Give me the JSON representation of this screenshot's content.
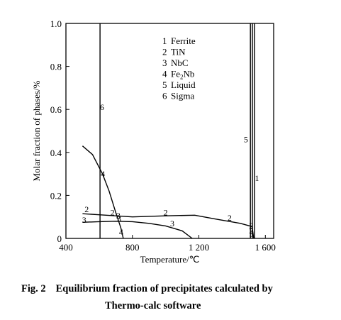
{
  "chart_data": {
    "type": "line",
    "xlabel": "Temperature/℃",
    "ylabel": "Molar fraction of phases/%",
    "xlim": [
      400,
      1650
    ],
    "ylim": [
      0,
      1.0
    ],
    "x_ticks": [
      {
        "value": 400,
        "label": "400"
      },
      {
        "value": 800,
        "label": "800"
      },
      {
        "value": 1200,
        "label": "1 200"
      },
      {
        "value": 1600,
        "label": "1 600"
      }
    ],
    "y_ticks": [
      {
        "value": 0,
        "label": "0"
      },
      {
        "value": 0.2,
        "label": "0.2"
      },
      {
        "value": 0.4,
        "label": "0.4"
      },
      {
        "value": 0.6,
        "label": "0.6"
      },
      {
        "value": 0.8,
        "label": "0.8"
      },
      {
        "value": 1.0,
        "label": "1.0"
      }
    ],
    "legend": {
      "placement": "top-center",
      "entries": [
        {
          "num": "1",
          "name": "Ferrite"
        },
        {
          "num": "2",
          "name": "TiN"
        },
        {
          "num": "3",
          "name": "NbC"
        },
        {
          "num": "4",
          "name": "Fe",
          "sub": "2",
          "suffix": "Nb"
        },
        {
          "num": "5",
          "name": "Liquid"
        },
        {
          "num": "6",
          "name": "Sigma"
        }
      ]
    },
    "series": [
      {
        "name": "Ferrite",
        "label": "1",
        "points": [
          [
            1535,
            1.0
          ],
          [
            1535,
            0.0
          ]
        ]
      },
      {
        "name": "TiN",
        "label": "2",
        "points": [
          [
            500,
            0.115
          ],
          [
            600,
            0.11
          ],
          [
            700,
            0.105
          ],
          [
            800,
            0.1
          ],
          [
            1000,
            0.105
          ],
          [
            1175,
            0.108
          ],
          [
            1300,
            0.09
          ],
          [
            1450,
            0.07
          ],
          [
            1520,
            0.055
          ],
          [
            1530,
            0.0
          ]
        ]
      },
      {
        "name": "NbC",
        "label": "3",
        "points": [
          [
            500,
            0.075
          ],
          [
            600,
            0.078
          ],
          [
            700,
            0.08
          ],
          [
            800,
            0.078
          ],
          [
            900,
            0.07
          ],
          [
            1000,
            0.058
          ],
          [
            1100,
            0.035
          ],
          [
            1160,
            0.0
          ]
        ]
      },
      {
        "name": "Fe₂Nb",
        "label": "4",
        "points": [
          [
            500,
            0.43
          ],
          [
            560,
            0.39
          ],
          [
            620,
            0.3
          ],
          [
            660,
            0.22
          ],
          [
            700,
            0.12
          ],
          [
            730,
            0.05
          ],
          [
            745,
            0.0
          ]
        ]
      },
      {
        "name": "Liquid",
        "label": "5",
        "points": [
          [
            1510,
            1.0
          ],
          [
            1510,
            0.0
          ]
        ]
      },
      {
        "name": "Sigma",
        "label": "6",
        "points": [
          [
            605,
            1.0
          ],
          [
            605,
            0.0
          ]
        ]
      },
      {
        "name": "",
        "label": "",
        "points": [
          [
            1522,
            1.0
          ],
          [
            1522,
            0.0
          ]
        ]
      }
    ],
    "curve_labels": [
      {
        "text": "1",
        "x": 1550,
        "y": 0.28
      },
      {
        "text": "2",
        "x": 525,
        "y": 0.135
      },
      {
        "text": "2",
        "x": 680,
        "y": 0.12
      },
      {
        "text": "2",
        "x": 1000,
        "y": 0.12
      },
      {
        "text": "2",
        "x": 1385,
        "y": 0.095
      },
      {
        "text": "2",
        "x": 1515,
        "y": 0.06
      },
      {
        "text": "3",
        "x": 510,
        "y": 0.085
      },
      {
        "text": "3",
        "x": 715,
        "y": 0.105
      },
      {
        "text": "3",
        "x": 720,
        "y": 0.09
      },
      {
        "text": "3",
        "x": 1040,
        "y": 0.07
      },
      {
        "text": "3",
        "x": 1515,
        "y": 0.035
      },
      {
        "text": "4",
        "x": 623,
        "y": 0.3
      },
      {
        "text": "4",
        "x": 732,
        "y": 0.03
      },
      {
        "text": "5",
        "x": 1483,
        "y": 0.46
      },
      {
        "text": "6",
        "x": 617,
        "y": 0.61
      },
      {
        "text": "5",
        "x": 1516,
        "y": 0.02
      }
    ]
  },
  "caption": {
    "figure_number": "Fig. 2",
    "line1": "Equilibrium fraction of precipitates calculated by",
    "line2": "Thermo-calc software"
  }
}
